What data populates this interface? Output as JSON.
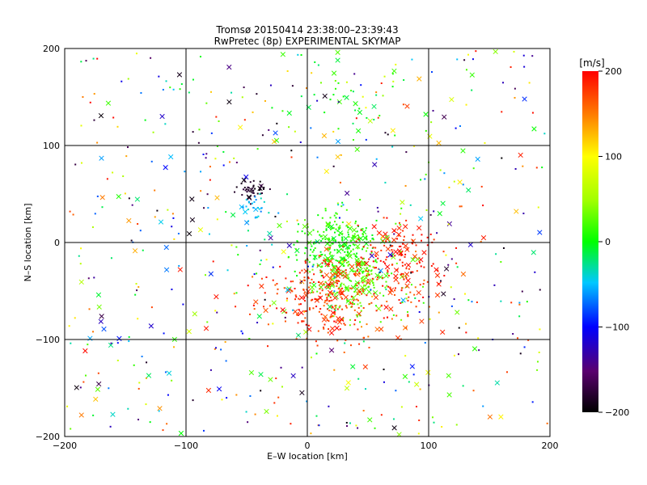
{
  "chart_data": {
    "type": "scatter",
    "title": "Tromsø 20150414 23:38:00–23:39:43",
    "subtitle": "RwPretec (8p) EXPERIMENTAL SKYMAP",
    "xlabel": "E–W location [km]",
    "ylabel": "N–S location [km]",
    "xlim": [
      -200,
      200
    ],
    "ylim": [
      -200,
      200
    ],
    "xticks": [
      "−200",
      "−100",
      "0",
      "100",
      "200"
    ],
    "yticks": [
      "−200",
      "−100",
      "0",
      "100",
      "200"
    ],
    "grid": true,
    "colorbar": {
      "label": "[m/s]",
      "range": [
        -200,
        200
      ],
      "ticks": [
        "−200",
        "−100",
        "0",
        "100",
        "200"
      ]
    },
    "clusters": [
      {
        "cx": -45,
        "cy": 55,
        "spread": 6,
        "count": 40,
        "vmin": -200,
        "vmax": -170
      },
      {
        "cx": -45,
        "cy": 38,
        "spread": 7,
        "count": 30,
        "vmin": -70,
        "vmax": -30
      },
      {
        "cx": 25,
        "cy": -5,
        "spread": 16,
        "count": 260,
        "vmin": -10,
        "vmax": 30
      },
      {
        "cx": 40,
        "cy": -40,
        "spread": 20,
        "count": 180,
        "vmin": 10,
        "vmax": 40
      },
      {
        "cx": 75,
        "cy": -20,
        "spread": 20,
        "count": 160,
        "vmin": 170,
        "vmax": 200
      },
      {
        "cx": 10,
        "cy": -55,
        "spread": 22,
        "count": 220,
        "vmin": 160,
        "vmax": 200
      },
      {
        "cx": 45,
        "cy": -70,
        "spread": 25,
        "count": 80,
        "vmin": 150,
        "vmax": 200
      },
      {
        "cx": 30,
        "cy": 140,
        "spread": 25,
        "count": 40,
        "vmin": -20,
        "vmax": 20
      },
      {
        "cx": 0,
        "cy": 0,
        "spread": 110,
        "count": 600,
        "vmin": -200,
        "vmax": 200
      }
    ]
  }
}
